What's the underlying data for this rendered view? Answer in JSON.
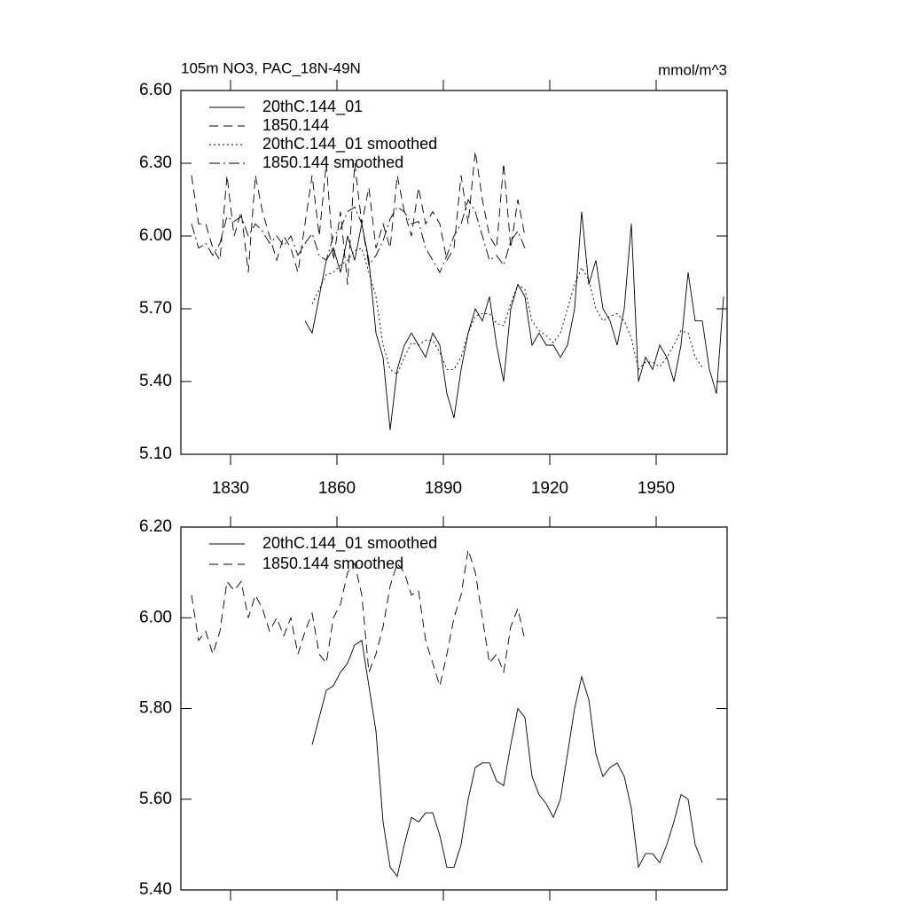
{
  "chart_data": [
    {
      "type": "line",
      "title": "105m NO3, PAC_18N-49N",
      "units": "mmol/m^3",
      "x": [
        1819,
        1821,
        1823,
        1825,
        1827,
        1829,
        1831,
        1833,
        1835,
        1837,
        1839,
        1841,
        1843,
        1845,
        1847,
        1849,
        1851,
        1853,
        1855,
        1857,
        1859,
        1861,
        1863,
        1865,
        1867,
        1869,
        1871,
        1873,
        1875,
        1877,
        1879,
        1881,
        1883,
        1885,
        1887,
        1889,
        1891,
        1893,
        1895,
        1897,
        1899,
        1901,
        1903,
        1905,
        1907,
        1909,
        1911,
        1913,
        1915,
        1917,
        1919,
        1921,
        1923,
        1925,
        1927,
        1929,
        1931,
        1933,
        1935,
        1937,
        1939,
        1941,
        1943,
        1945,
        1947,
        1949,
        1951,
        1953,
        1955,
        1957,
        1959,
        1961,
        1963,
        1965,
        1967,
        1969
      ],
      "xlim": [
        1816,
        1970
      ],
      "xticks": [
        1830,
        1860,
        1890,
        1920,
        1950
      ],
      "ylim": [
        5.1,
        6.6
      ],
      "yticks": [
        {
          "value": 5.1,
          "label": "5.10"
        },
        {
          "value": 5.4,
          "label": "5.40"
        },
        {
          "value": 5.7,
          "label": "5.70"
        },
        {
          "value": 6.0,
          "label": "6.00"
        },
        {
          "value": 6.3,
          "label": "6.30"
        },
        {
          "value": 6.6,
          "label": "6.60"
        }
      ],
      "series": [
        {
          "name": "20thC.144_01",
          "color": "#000",
          "dash": "none",
          "values": [
            null,
            null,
            null,
            null,
            null,
            null,
            null,
            null,
            null,
            null,
            null,
            null,
            null,
            null,
            null,
            null,
            5.65,
            5.6,
            5.75,
            5.9,
            5.95,
            5.85,
            6.0,
            5.9,
            6.05,
            5.9,
            5.6,
            5.5,
            5.2,
            5.45,
            5.55,
            5.6,
            5.55,
            5.5,
            5.6,
            5.55,
            5.35,
            5.25,
            5.45,
            5.6,
            5.7,
            5.65,
            5.75,
            5.55,
            5.4,
            5.7,
            5.8,
            5.75,
            5.55,
            5.6,
            5.55,
            5.55,
            5.5,
            5.55,
            5.7,
            6.1,
            5.8,
            5.9,
            5.7,
            5.65,
            5.55,
            5.7,
            6.05,
            5.4,
            5.5,
            5.45,
            5.55,
            5.5,
            5.4,
            5.55,
            5.85,
            5.65,
            5.65,
            5.45,
            5.35,
            5.75
          ]
        },
        {
          "name": "1850.144",
          "color": "#000",
          "dash": "10,6",
          "values": [
            6.25,
            6.05,
            6.05,
            5.95,
            5.9,
            6.25,
            6.0,
            6.1,
            5.85,
            6.25,
            6.1,
            6.0,
            5.9,
            6.0,
            5.95,
            5.85,
            6.05,
            6.25,
            6.0,
            6.3,
            5.9,
            6.1,
            5.8,
            6.3,
            6.05,
            6.2,
            5.95,
            6.05,
            5.95,
            6.25,
            6.1,
            6.0,
            6.2,
            6.05,
            6.1,
            6.05,
            5.9,
            5.95,
            6.25,
            6.05,
            6.35,
            6.15,
            6.0,
            5.95,
            6.3,
            5.95,
            6.15,
            6.0,
            null,
            null,
            null,
            null,
            null,
            null,
            null,
            null,
            null,
            null,
            null,
            null,
            null,
            null,
            null,
            null,
            null,
            null,
            null,
            null,
            null,
            null,
            null,
            null,
            null,
            null,
            null,
            null
          ]
        },
        {
          "name": "20thC.144_01 smoothed",
          "color": "#000",
          "dash": "2,3",
          "values": [
            null,
            null,
            null,
            null,
            null,
            null,
            null,
            null,
            null,
            null,
            null,
            null,
            null,
            null,
            null,
            null,
            null,
            5.72,
            5.78,
            5.84,
            5.85,
            5.88,
            5.9,
            5.94,
            5.95,
            5.85,
            5.75,
            5.55,
            5.45,
            5.43,
            5.5,
            5.56,
            5.55,
            5.57,
            5.57,
            5.52,
            5.45,
            5.45,
            5.5,
            5.6,
            5.67,
            5.68,
            5.68,
            5.64,
            5.63,
            5.72,
            5.8,
            5.78,
            5.65,
            5.61,
            5.59,
            5.56,
            5.6,
            5.7,
            5.8,
            5.87,
            5.82,
            5.7,
            5.65,
            5.67,
            5.68,
            5.65,
            5.58,
            5.45,
            5.48,
            5.48,
            5.46,
            5.5,
            5.55,
            5.61,
            5.6,
            5.5,
            5.46,
            null,
            null,
            null
          ]
        },
        {
          "name": "1850.144 smoothed",
          "color": "#000",
          "dash": "12,4,2,4",
          "values": [
            6.05,
            5.95,
            5.97,
            5.92,
            5.97,
            6.08,
            6.06,
            6.08,
            6.0,
            6.05,
            6.02,
            5.97,
            6.0,
            5.96,
            6.0,
            5.92,
            5.97,
            6.01,
            5.92,
            5.9,
            6.0,
            6.03,
            6.1,
            6.12,
            6.05,
            5.88,
            5.92,
            5.98,
            6.07,
            6.12,
            6.1,
            6.05,
            6.06,
            5.95,
            5.9,
            5.85,
            5.92,
            6.0,
            6.05,
            6.15,
            6.1,
            6.0,
            5.9,
            5.92,
            5.88,
            5.98,
            6.02,
            5.95,
            null,
            null,
            null,
            null,
            null,
            null,
            null,
            null,
            null,
            null,
            null,
            null,
            null,
            null,
            null,
            null,
            null,
            null,
            null,
            null,
            null,
            null,
            null,
            null,
            null,
            null,
            null,
            null
          ]
        }
      ]
    },
    {
      "type": "line",
      "x": [
        1819,
        1821,
        1823,
        1825,
        1827,
        1829,
        1831,
        1833,
        1835,
        1837,
        1839,
        1841,
        1843,
        1845,
        1847,
        1849,
        1851,
        1853,
        1855,
        1857,
        1859,
        1861,
        1863,
        1865,
        1867,
        1869,
        1871,
        1873,
        1875,
        1877,
        1879,
        1881,
        1883,
        1885,
        1887,
        1889,
        1891,
        1893,
        1895,
        1897,
        1899,
        1901,
        1903,
        1905,
        1907,
        1909,
        1911,
        1913,
        1915,
        1917,
        1919,
        1921,
        1923,
        1925,
        1927,
        1929,
        1931,
        1933,
        1935,
        1937,
        1939,
        1941,
        1943,
        1945,
        1947,
        1949,
        1951,
        1953,
        1955,
        1957,
        1959,
        1961,
        1963,
        1965,
        1967,
        1969
      ],
      "xlim": [
        1816,
        1970
      ],
      "ylim": [
        5.4,
        6.2
      ],
      "yticks": [
        {
          "value": 5.4,
          "label": "5.40"
        },
        {
          "value": 5.6,
          "label": "5.60"
        },
        {
          "value": 5.8,
          "label": "5.80"
        },
        {
          "value": 6.0,
          "label": "6.00"
        },
        {
          "value": 6.2,
          "label": "6.20"
        }
      ],
      "series": [
        {
          "name": "20thC.144_01 smoothed",
          "color": "#000",
          "dash": "none",
          "values": [
            null,
            null,
            null,
            null,
            null,
            null,
            null,
            null,
            null,
            null,
            null,
            null,
            null,
            null,
            null,
            null,
            null,
            5.72,
            5.78,
            5.84,
            5.85,
            5.88,
            5.9,
            5.94,
            5.95,
            5.85,
            5.75,
            5.55,
            5.45,
            5.43,
            5.5,
            5.56,
            5.55,
            5.57,
            5.57,
            5.52,
            5.45,
            5.45,
            5.5,
            5.6,
            5.67,
            5.68,
            5.68,
            5.64,
            5.63,
            5.72,
            5.8,
            5.78,
            5.65,
            5.61,
            5.59,
            5.56,
            5.6,
            5.7,
            5.8,
            5.87,
            5.82,
            5.7,
            5.65,
            5.67,
            5.68,
            5.65,
            5.58,
            5.45,
            5.48,
            5.48,
            5.46,
            5.5,
            5.55,
            5.61,
            5.6,
            5.5,
            5.46,
            null,
            null,
            null
          ]
        },
        {
          "name": "1850.144 smoothed",
          "color": "#000",
          "dash": "10,6",
          "values": [
            6.05,
            5.95,
            5.97,
            5.92,
            5.97,
            6.08,
            6.06,
            6.08,
            6.0,
            6.05,
            6.02,
            5.97,
            6.0,
            5.96,
            6.0,
            5.92,
            5.97,
            6.01,
            5.92,
            5.9,
            6.0,
            6.03,
            6.1,
            6.12,
            6.05,
            5.88,
            5.92,
            5.98,
            6.07,
            6.12,
            6.1,
            6.05,
            6.06,
            5.95,
            5.9,
            5.85,
            5.92,
            6.0,
            6.05,
            6.15,
            6.1,
            6.0,
            5.9,
            5.92,
            5.88,
            5.98,
            6.02,
            5.95,
            null,
            null,
            null,
            null,
            null,
            null,
            null,
            null,
            null,
            null,
            null,
            null,
            null,
            null,
            null,
            null,
            null,
            null,
            null,
            null,
            null,
            null,
            null,
            null,
            null,
            null,
            null,
            null
          ]
        }
      ]
    }
  ]
}
